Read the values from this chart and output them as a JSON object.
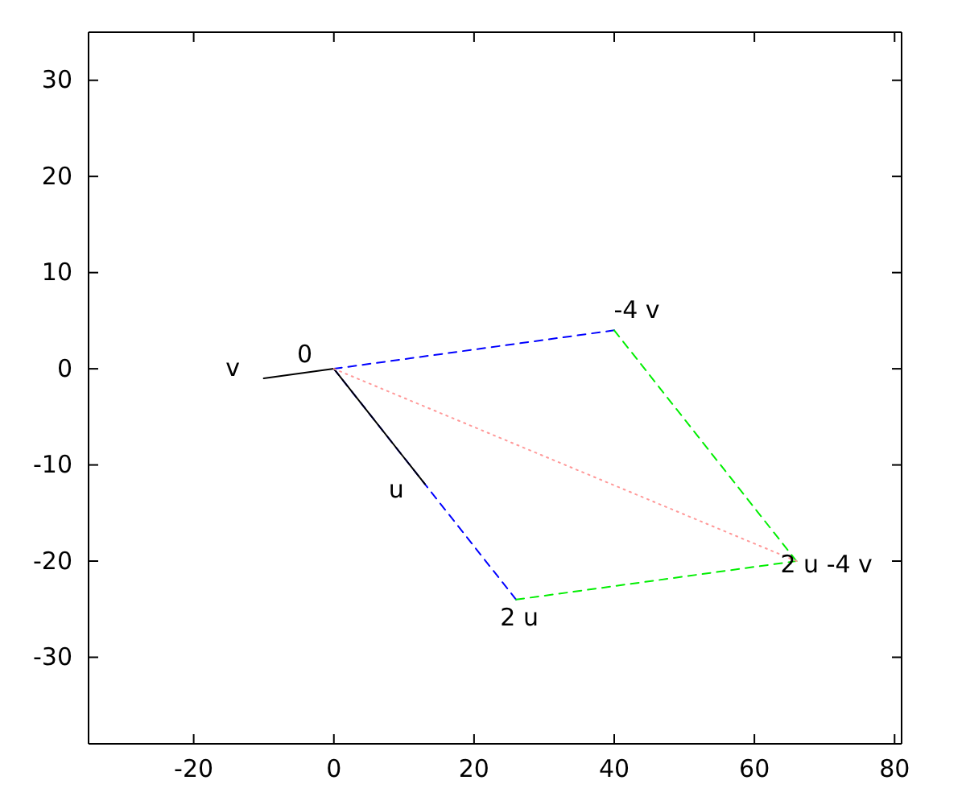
{
  "chart_data": {
    "type": "line",
    "xlim": [
      -35,
      81
    ],
    "ylim": [
      -39,
      35
    ],
    "xticks": [
      -20,
      0,
      20,
      40,
      60,
      80
    ],
    "yticks": [
      -30,
      -20,
      -10,
      0,
      10,
      20,
      30
    ],
    "grid": false,
    "series": [
      {
        "color": "#0000ff",
        "line_style": "dashed",
        "x": [
          0,
          26
        ],
        "values": [
          0,
          -24
        ]
      },
      {
        "color": "#0000ff",
        "line_style": "dashed",
        "x": [
          0,
          40
        ],
        "values": [
          0,
          4
        ]
      },
      {
        "color": "#00ee00",
        "line_style": "dashed",
        "x": [
          40,
          66
        ],
        "values": [
          4,
          -20
        ]
      },
      {
        "color": "#00ee00",
        "line_style": "dashed",
        "x": [
          26,
          66
        ],
        "values": [
          -24,
          -20
        ]
      },
      {
        "color": "#000000",
        "line_style": "solid",
        "x": [
          0,
          13
        ],
        "values": [
          0,
          -12
        ]
      },
      {
        "color": "#000000",
        "line_style": "solid",
        "x": [
          0,
          -10
        ],
        "values": [
          0,
          -1
        ]
      },
      {
        "color": "#ff9999",
        "line_style": "dotted",
        "x": [
          0,
          66
        ],
        "values": [
          0,
          -20
        ]
      }
    ],
    "annotations": [
      {
        "text": "0",
        "x": 0,
        "y": 0
      },
      {
        "text": "v",
        "x": -10,
        "y": -1
      },
      {
        "text": "u",
        "x": 13,
        "y": -12
      },
      {
        "text": "-4 v",
        "x": 40,
        "y": 4
      },
      {
        "text": "2 u",
        "x": 26,
        "y": -24
      },
      {
        "text": "2 u -4 v",
        "x": 66,
        "y": -20
      }
    ]
  }
}
